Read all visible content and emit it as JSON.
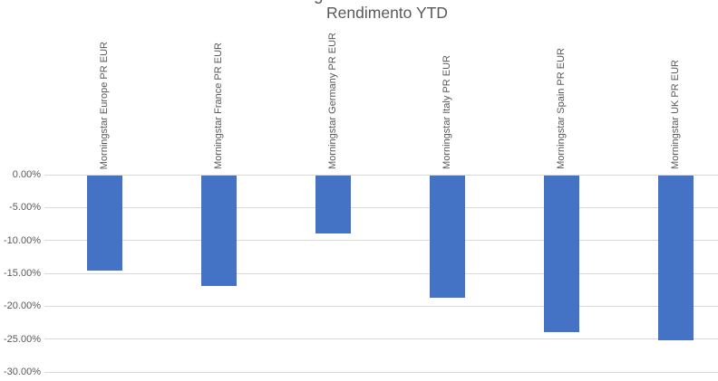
{
  "decor": {
    "clipped_text_fragment": "g"
  },
  "chart_data": {
    "type": "bar",
    "title": "Rendimento YTD",
    "categories": [
      "Morningstar Europe PR EUR",
      "Morningstar France PR EUR",
      "Morningstar Germany PR EUR",
      "Morningstar Italy PR EUR",
      "Morningstar Spain PR EUR",
      "Morningstar UK PR EUR"
    ],
    "values": [
      -14.5,
      -16.8,
      -8.9,
      -18.6,
      -23.8,
      -25.1
    ],
    "unit": "%",
    "xlabel": "",
    "ylabel": "",
    "ylim": [
      -30,
      0
    ],
    "y_ticks": [
      {
        "label": "0.00%",
        "value": 0
      },
      {
        "label": "-5.00%",
        "value": -5
      },
      {
        "label": "-10.00%",
        "value": -10
      },
      {
        "label": "-15.00%",
        "value": -15
      },
      {
        "label": "-20.00%",
        "value": -20
      },
      {
        "label": "-25.00%",
        "value": -25
      },
      {
        "label": "-30.00%",
        "value": -30
      }
    ],
    "grid": true,
    "legend": false,
    "bar_color": "#4472C4",
    "gridline_color": "#D9D9D9",
    "text_color": "#595959",
    "title_color": "#595959"
  }
}
